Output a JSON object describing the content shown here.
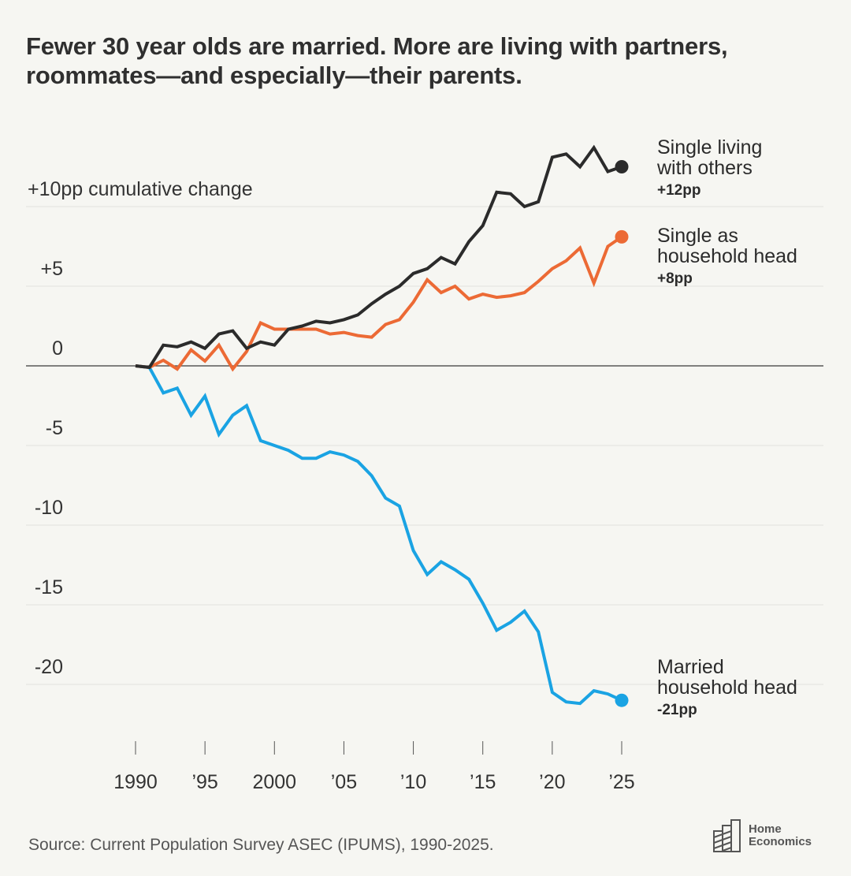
{
  "title": "Fewer 30 year olds are married. More are living with partners, roommates—and especially—their parents.",
  "source": "Source: Current Population Survey ASEC (IPUMS), 1990-2025.",
  "logo": {
    "line1": "Home",
    "line2": "Economics",
    "icon": "buildings-icon"
  },
  "colors": {
    "background": "#f6f6f2",
    "black": "#2b2b2b",
    "orange": "#ec6a35",
    "blue": "#1aa3e3",
    "grid": "#e3e3de"
  },
  "chart_data": {
    "type": "line",
    "title": "Fewer 30 year olds are married. More are living with partners, roommates—and especially—their parents.",
    "xlabel": "",
    "ylabel": "+10pp cumulative change",
    "xlim": [
      1990,
      2025
    ],
    "ylim": [
      -22,
      12
    ],
    "grid": true,
    "legend": "direct-labels-right",
    "y_ticks": [
      {
        "value": 10,
        "label": "+10pp cumulative change"
      },
      {
        "value": 5,
        "label": "+5"
      },
      {
        "value": 0,
        "label": "0"
      },
      {
        "value": -5,
        "label": "-5"
      },
      {
        "value": -10,
        "label": "-10"
      },
      {
        "value": -15,
        "label": "-15"
      },
      {
        "value": -20,
        "label": "-20"
      }
    ],
    "x_ticks": [
      {
        "value": 1990,
        "label": "1990"
      },
      {
        "value": 1995,
        "label": "’95"
      },
      {
        "value": 2000,
        "label": "2000"
      },
      {
        "value": 2005,
        "label": "’05"
      },
      {
        "value": 2010,
        "label": "’10"
      },
      {
        "value": 2015,
        "label": "’15"
      },
      {
        "value": 2020,
        "label": "’20"
      },
      {
        "value": 2025,
        "label": "’25"
      }
    ],
    "x": [
      1990,
      1991,
      1992,
      1993,
      1994,
      1995,
      1996,
      1997,
      1998,
      1999,
      2000,
      2001,
      2002,
      2003,
      2004,
      2005,
      2006,
      2007,
      2008,
      2009,
      2010,
      2011,
      2012,
      2013,
      2014,
      2015,
      2016,
      2017,
      2018,
      2019,
      2020,
      2021,
      2022,
      2023,
      2024,
      2025
    ],
    "series": [
      {
        "name": "Single living with others",
        "label_lines": [
          "Single living",
          "with others"
        ],
        "end_label": "+12pp",
        "color": "#2b2b2b",
        "values": [
          0,
          -0.1,
          1.3,
          1.2,
          1.5,
          1.1,
          2.0,
          2.2,
          1.1,
          1.5,
          1.3,
          2.3,
          2.5,
          2.8,
          2.7,
          2.9,
          3.2,
          3.9,
          4.5,
          5.0,
          5.8,
          6.1,
          6.8,
          6.4,
          7.8,
          8.8,
          10.9,
          10.8,
          10.0,
          10.3,
          13.1,
          13.3,
          12.5,
          13.7,
          12.2,
          12.5
        ]
      },
      {
        "name": "Single as household head",
        "label_lines": [
          "Single as",
          "household head"
        ],
        "end_label": "+8pp",
        "color": "#ec6a35",
        "values": [
          0,
          -0.1,
          0.35,
          -0.2,
          1.0,
          0.3,
          1.3,
          -0.2,
          0.9,
          2.7,
          2.3,
          2.3,
          2.3,
          2.3,
          2.0,
          2.1,
          1.9,
          1.8,
          2.6,
          2.9,
          4.0,
          5.4,
          4.6,
          5.0,
          4.2,
          4.5,
          4.3,
          4.4,
          4.6,
          5.3,
          6.1,
          6.6,
          7.4,
          5.2,
          7.5,
          8.1
        ]
      },
      {
        "name": "Married household head",
        "label_lines": [
          "Married",
          "household head"
        ],
        "end_label": "-21pp",
        "color": "#1aa3e3",
        "values": [
          0,
          -0.1,
          -1.7,
          -1.4,
          -3.1,
          -1.9,
          -4.3,
          -3.1,
          -2.5,
          -4.7,
          -5.0,
          -5.3,
          -5.8,
          -5.8,
          -5.4,
          -5.6,
          -6.0,
          -6.9,
          -8.3,
          -8.8,
          -11.6,
          -13.1,
          -12.3,
          -12.8,
          -13.4,
          -14.9,
          -16.6,
          -16.1,
          -15.4,
          -16.7,
          -20.5,
          -21.1,
          -21.2,
          -20.4,
          -20.6,
          -21.0
        ]
      }
    ]
  }
}
